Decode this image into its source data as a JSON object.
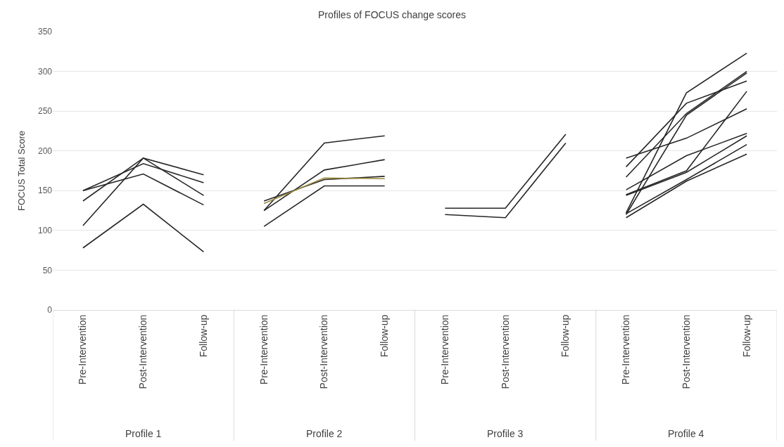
{
  "chart_data": {
    "type": "line",
    "title": "Profiles of FOCUS change scores",
    "ylabel": "FOCUS Total Score",
    "categories": [
      "Pre-Intervention",
      "Post-Intervention",
      "Follow-up",
      "Pre-Intervention",
      "Post-Intervention",
      "Follow-up",
      "Pre-Intervention",
      "Post-Intervention",
      "Follow-up",
      "Pre-Intervention",
      "Post-Intervention",
      "Follow-up"
    ],
    "annotations": [
      "Profile 1",
      "Profile 2",
      "Profile 3",
      "Profile 4"
    ],
    "ylim": [
      0,
      350
    ],
    "yticks": [
      0,
      50,
      100,
      150,
      200,
      250,
      300,
      350
    ],
    "grid": "y",
    "legend": false,
    "marker": "none",
    "line_style": "solid",
    "series": [
      {
        "color": "#262626",
        "values": [
          150,
          184,
          160,
          null,
          null,
          null,
          null,
          null,
          null,
          null,
          null,
          null
        ]
      },
      {
        "color": "#262626",
        "values": [
          150,
          171,
          132,
          null,
          null,
          null,
          null,
          null,
          null,
          null,
          null,
          null
        ]
      },
      {
        "color": "#262626",
        "values": [
          137,
          191,
          144,
          null,
          null,
          null,
          null,
          null,
          null,
          null,
          null,
          null
        ]
      },
      {
        "color": "#262626",
        "values": [
          106,
          191,
          170,
          null,
          null,
          null,
          null,
          null,
          null,
          null,
          null,
          null
        ]
      },
      {
        "color": "#262626",
        "values": [
          78,
          133,
          73,
          null,
          null,
          null,
          null,
          null,
          null,
          null,
          null,
          null
        ]
      },
      {
        "color": "#262626",
        "values": [
          null,
          null,
          null,
          125,
          210,
          219,
          null,
          null,
          null,
          null,
          null,
          null
        ]
      },
      {
        "color": "#262626",
        "values": [
          null,
          null,
          null,
          125,
          176,
          189,
          null,
          null,
          null,
          null,
          null,
          null
        ]
      },
      {
        "color": "#262626",
        "values": [
          null,
          null,
          null,
          137,
          164,
          168,
          null,
          null,
          null,
          null,
          null,
          null
        ]
      },
      {
        "color": "#9c8a3c",
        "values": [
          null,
          null,
          null,
          134,
          166,
          165,
          null,
          null,
          null,
          null,
          null,
          null
        ]
      },
      {
        "color": "#262626",
        "values": [
          null,
          null,
          null,
          105,
          156,
          156,
          null,
          null,
          null,
          null,
          null,
          null
        ]
      },
      {
        "color": "#262626",
        "values": [
          null,
          null,
          null,
          null,
          null,
          null,
          128,
          128,
          221,
          null,
          null,
          null
        ]
      },
      {
        "color": "#262626",
        "values": [
          null,
          null,
          null,
          null,
          null,
          null,
          120,
          116,
          210,
          null,
          null,
          null
        ]
      },
      {
        "color": "#262626",
        "values": [
          null,
          null,
          null,
          null,
          null,
          null,
          null,
          null,
          null,
          191,
          216,
          253
        ]
      },
      {
        "color": "#262626",
        "values": [
          null,
          null,
          null,
          null,
          null,
          null,
          null,
          null,
          null,
          180,
          260,
          288
        ]
      },
      {
        "color": "#262626",
        "values": [
          null,
          null,
          null,
          null,
          null,
          null,
          null,
          null,
          null,
          167,
          247,
          300
        ]
      },
      {
        "color": "#262626",
        "values": [
          null,
          null,
          null,
          null,
          null,
          null,
          null,
          null,
          null,
          122,
          273,
          323
        ]
      },
      {
        "color": "#262626",
        "values": [
          null,
          null,
          null,
          null,
          null,
          null,
          null,
          null,
          null,
          120,
          245,
          298
        ]
      },
      {
        "color": "#262626",
        "values": [
          null,
          null,
          null,
          null,
          null,
          null,
          null,
          null,
          null,
          151,
          194,
          222
        ]
      },
      {
        "color": "#262626",
        "values": [
          null,
          null,
          null,
          null,
          null,
          null,
          null,
          null,
          null,
          145,
          175,
          275
        ]
      },
      {
        "color": "#262626",
        "values": [
          null,
          null,
          null,
          null,
          null,
          null,
          null,
          null,
          null,
          144,
          173,
          219
        ]
      },
      {
        "color": "#262626",
        "values": [
          null,
          null,
          null,
          null,
          null,
          null,
          null,
          null,
          null,
          121,
          164,
          208
        ]
      },
      {
        "color": "#262626",
        "values": [
          null,
          null,
          null,
          null,
          null,
          null,
          null,
          null,
          null,
          116,
          162,
          196
        ]
      }
    ]
  }
}
